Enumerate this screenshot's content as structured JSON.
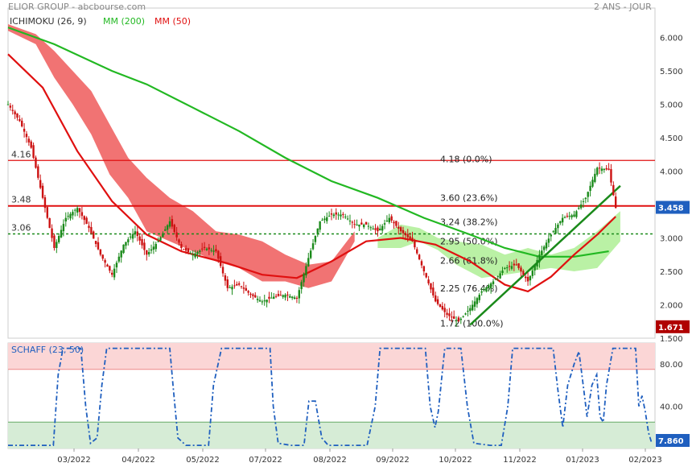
{
  "header": {
    "title": "ELIOR GROUP - abcbourse.com",
    "period": "2 ANS - JOUR"
  },
  "legend": {
    "ichimoku": "ICHIMOKU (26, 9)",
    "mm200": "MM (200)",
    "mm50": "MM (50)"
  },
  "colors": {
    "mm200": "#22b822",
    "mm50": "#e01010",
    "kumo_bear": "#f06464",
    "kumo_bull": "#b6f0a0",
    "candle_up": "#1a8a1a",
    "candle_down": "#cc1111",
    "schaff": "#1f5fbf",
    "accent_price": "#1f5fbf",
    "accent_low": "#b00000"
  },
  "chart_data": [
    {
      "type": "candlestick",
      "title": "ELIOR GROUP",
      "ylim": [
        1.5,
        6.2
      ],
      "y_ticks": [
        "6.000",
        "5.500",
        "5.000",
        "4.500",
        "4.000",
        "3.500",
        "3.000",
        "2.500",
        "2.000",
        "1.500"
      ],
      "x_ticks": [
        "03/2022",
        "04/2022",
        "05/2022",
        "07/2022",
        "08/2022",
        "09/2022",
        "10/2022",
        "11/2022",
        "01/2023",
        "02/2023"
      ],
      "price_close_path": [
        [
          0,
          5.0
        ],
        [
          5,
          4.75
        ],
        [
          10,
          4.35
        ],
        [
          15,
          3.6
        ],
        [
          20,
          2.85
        ],
        [
          25,
          3.3
        ],
        [
          30,
          3.45
        ],
        [
          35,
          3.15
        ],
        [
          40,
          2.75
        ],
        [
          45,
          2.45
        ],
        [
          50,
          2.9
        ],
        [
          55,
          3.1
        ],
        [
          60,
          2.75
        ],
        [
          65,
          2.95
        ],
        [
          70,
          3.25
        ],
        [
          75,
          2.85
        ],
        [
          80,
          2.75
        ],
        [
          85,
          2.85
        ],
        [
          90,
          2.8
        ],
        [
          95,
          2.25
        ],
        [
          100,
          2.3
        ],
        [
          105,
          2.15
        ],
        [
          110,
          2.05
        ],
        [
          115,
          2.12
        ],
        [
          120,
          2.15
        ],
        [
          125,
          2.1
        ],
        [
          130,
          2.7
        ],
        [
          135,
          3.25
        ],
        [
          140,
          3.35
        ],
        [
          145,
          3.35
        ],
        [
          150,
          3.2
        ],
        [
          155,
          3.2
        ],
        [
          160,
          3.1
        ],
        [
          165,
          3.3
        ],
        [
          170,
          3.1
        ],
        [
          175,
          2.95
        ],
        [
          180,
          2.5
        ],
        [
          185,
          2.05
        ],
        [
          190,
          1.85
        ],
        [
          195,
          1.75
        ],
        [
          200,
          1.95
        ],
        [
          205,
          2.2
        ],
        [
          210,
          2.35
        ],
        [
          215,
          2.55
        ],
        [
          220,
          2.6
        ],
        [
          225,
          2.35
        ],
        [
          230,
          2.75
        ],
        [
          235,
          3.05
        ],
        [
          240,
          3.3
        ],
        [
          245,
          3.35
        ],
        [
          250,
          3.6
        ],
        [
          255,
          4.05
        ],
        [
          260,
          4.02
        ],
        [
          263,
          3.45
        ]
      ],
      "mm200_path": [
        [
          0,
          6.15
        ],
        [
          20,
          5.9
        ],
        [
          45,
          5.5
        ],
        [
          60,
          5.3
        ],
        [
          80,
          4.95
        ],
        [
          100,
          4.6
        ],
        [
          120,
          4.2
        ],
        [
          140,
          3.85
        ],
        [
          160,
          3.6
        ],
        [
          180,
          3.3
        ],
        [
          200,
          3.05
        ],
        [
          215,
          2.85
        ],
        [
          230,
          2.72
        ],
        [
          245,
          2.72
        ],
        [
          260,
          2.8
        ]
      ],
      "mm50_path": [
        [
          0,
          5.75
        ],
        [
          15,
          5.25
        ],
        [
          30,
          4.3
        ],
        [
          45,
          3.55
        ],
        [
          60,
          3.05
        ],
        [
          75,
          2.8
        ],
        [
          95,
          2.62
        ],
        [
          110,
          2.45
        ],
        [
          125,
          2.4
        ],
        [
          140,
          2.65
        ],
        [
          155,
          2.95
        ],
        [
          170,
          3.0
        ],
        [
          185,
          2.9
        ],
        [
          200,
          2.65
        ],
        [
          215,
          2.3
        ],
        [
          225,
          2.2
        ],
        [
          235,
          2.42
        ],
        [
          245,
          2.75
        ],
        [
          255,
          3.05
        ],
        [
          263,
          3.32
        ]
      ],
      "kumo_bear_upper": [
        [
          0,
          6.2
        ],
        [
          12,
          6.05
        ],
        [
          20,
          5.8
        ],
        [
          28,
          5.5
        ],
        [
          36,
          5.2
        ],
        [
          44,
          4.7
        ],
        [
          52,
          4.2
        ],
        [
          60,
          3.9
        ],
        [
          70,
          3.6
        ],
        [
          80,
          3.4
        ],
        [
          90,
          3.1
        ],
        [
          100,
          3.05
        ],
        [
          110,
          2.95
        ],
        [
          120,
          2.75
        ],
        [
          130,
          2.6
        ],
        [
          140,
          2.65
        ],
        [
          150,
          3.1
        ]
      ],
      "kumo_bear_lower": [
        [
          0,
          6.1
        ],
        [
          12,
          5.9
        ],
        [
          20,
          5.4
        ],
        [
          28,
          5.0
        ],
        [
          36,
          4.55
        ],
        [
          44,
          3.95
        ],
        [
          52,
          3.6
        ],
        [
          60,
          3.1
        ],
        [
          70,
          2.95
        ],
        [
          80,
          2.8
        ],
        [
          90,
          2.65
        ],
        [
          100,
          2.55
        ],
        [
          110,
          2.35
        ],
        [
          120,
          2.35
        ],
        [
          130,
          2.25
        ],
        [
          140,
          2.35
        ],
        [
          150,
          2.95
        ]
      ],
      "kumo_bull_upper": [
        [
          160,
          3.0
        ],
        [
          170,
          3.2
        ],
        [
          178,
          3.15
        ],
        [
          186,
          3.0
        ],
        [
          194,
          2.95
        ],
        [
          205,
          2.9
        ],
        [
          215,
          2.75
        ],
        [
          225,
          2.85
        ],
        [
          235,
          2.75
        ],
        [
          245,
          2.85
        ],
        [
          255,
          3.1
        ],
        [
          265,
          3.4
        ]
      ],
      "kumo_bull_lower": [
        [
          160,
          2.85
        ],
        [
          170,
          2.85
        ],
        [
          178,
          2.95
        ],
        [
          186,
          2.82
        ],
        [
          194,
          2.6
        ],
        [
          205,
          2.4
        ],
        [
          215,
          2.45
        ],
        [
          225,
          2.5
        ],
        [
          235,
          2.55
        ],
        [
          245,
          2.5
        ],
        [
          255,
          2.55
        ],
        [
          265,
          2.95
        ]
      ],
      "hlines": [
        {
          "label": "4.16",
          "value": 4.16,
          "style": "solid",
          "color": "#e01010"
        },
        {
          "label": "3.48",
          "value": 3.48,
          "style": "solid",
          "color": "#e01010"
        },
        {
          "label": "3.06",
          "value": 3.06,
          "style": "dotted",
          "color": "#1a8a1a"
        }
      ],
      "fib_levels": [
        {
          "label": "4.18 (0.0%)",
          "value": 4.18
        },
        {
          "label": "3.60 (23.6%)",
          "value": 3.6
        },
        {
          "label": "3.24 (38.2%)",
          "value": 3.24
        },
        {
          "label": "2.95 (50.0%)",
          "value": 2.95
        },
        {
          "label": "2.66 (61.8%)",
          "value": 2.66
        },
        {
          "label": "2.25 (76.4%)",
          "value": 2.25
        },
        {
          "label": "1.72 (100.0%)",
          "value": 1.72
        }
      ],
      "trendline": [
        [
          200,
          1.7
        ],
        [
          265,
          3.78
        ]
      ],
      "markers": [
        {
          "label": "3.458",
          "value": 3.458,
          "color": "#1f5fbf"
        },
        {
          "label": "1.671",
          "value": 1.671,
          "color": "#b00000"
        }
      ]
    },
    {
      "type": "line",
      "title": "SCHAFF (23, 50)",
      "ylim": [
        0,
        100
      ],
      "y_ticks": [
        "80.00",
        "40.00"
      ],
      "zones": {
        "over": 75,
        "under": 25
      },
      "values": [
        [
          0,
          3
        ],
        [
          20,
          3
        ],
        [
          28,
          3
        ],
        [
          31,
          70
        ],
        [
          34,
          95
        ],
        [
          45,
          95
        ],
        [
          48,
          40
        ],
        [
          51,
          5
        ],
        [
          55,
          10
        ],
        [
          58,
          60
        ],
        [
          61,
          95
        ],
        [
          100,
          95
        ],
        [
          102,
          60
        ],
        [
          105,
          10
        ],
        [
          110,
          3
        ],
        [
          124,
          3
        ],
        [
          127,
          60
        ],
        [
          132,
          95
        ],
        [
          162,
          95
        ],
        [
          164,
          40
        ],
        [
          167,
          5
        ],
        [
          175,
          3
        ],
        [
          183,
          3
        ],
        [
          186,
          45
        ],
        [
          190,
          45
        ],
        [
          194,
          10
        ],
        [
          198,
          3
        ],
        [
          200,
          3
        ],
        [
          210,
          3
        ],
        [
          216,
          3
        ],
        [
          222,
          3
        ],
        [
          227,
          40
        ],
        [
          230,
          95
        ],
        [
          258,
          95
        ],
        [
          261,
          40
        ],
        [
          264,
          20
        ],
        [
          266,
          35
        ],
        [
          270,
          95
        ],
        [
          280,
          95
        ],
        [
          284,
          40
        ],
        [
          288,
          5
        ],
        [
          298,
          3
        ],
        [
          305,
          3
        ],
        [
          309,
          40
        ],
        [
          312,
          95
        ],
        [
          337,
          95
        ],
        [
          340,
          55
        ],
        [
          343,
          20
        ],
        [
          346,
          60
        ],
        [
          350,
          80
        ],
        [
          353,
          92
        ],
        [
          356,
          55
        ],
        [
          358,
          30
        ],
        [
          361,
          60
        ],
        [
          364,
          70
        ],
        [
          366,
          30
        ],
        [
          368,
          25
        ],
        [
          370,
          60
        ],
        [
          374,
          95
        ],
        [
          388,
          95
        ],
        [
          390,
          40
        ],
        [
          392,
          50
        ],
        [
          394,
          35
        ],
        [
          396,
          15
        ],
        [
          398,
          5
        ]
      ],
      "last_value": "7.860"
    }
  ]
}
